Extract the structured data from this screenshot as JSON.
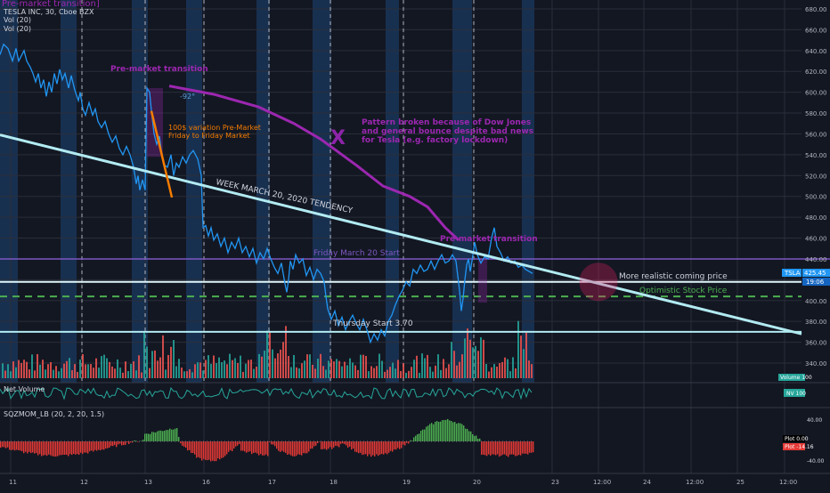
{
  "header": {
    "overlay_title": "Pre-market transition]",
    "symbol_line": "TESLA INC, 30, Cboe BZX",
    "vol_1": "Vol (20)",
    "vol_2": "Vol (20)"
  },
  "annotations": {
    "premarket_1": "Pre-market transition",
    "angle": "-92°",
    "variation_1": "100$ variation Pre-Market",
    "variation_2": "Friday to Friday Market",
    "pattern_1": "Pattern broken because of Dow Jones",
    "pattern_2": "and general bounce despite bad news",
    "pattern_3": "for Tesla (e.g. factory lockdown)",
    "trend": "WEEK MARCH 20, 2020 TENDENCY",
    "premarket_2": "Pre-market transition",
    "friday_start": "Friday March 20 Start",
    "realistic": "More realistic coming price",
    "optimistic": "Optimistic Stock Price",
    "thursday": "Thursday Start 3.70"
  },
  "price_badges": {
    "ticker": "TSLA",
    "price": "425.45",
    "timer": "19:06"
  },
  "volume_badge": "Volume 100",
  "net_volume": {
    "label": "Net Volume",
    "badge": "NV 100"
  },
  "sqz": {
    "label": "SQZMOM_LB (20, 2, 20, 1.5)",
    "plot_a": "Plot  0.00",
    "plot_b": "Plot  -14.16",
    "ticks": [
      "40.00",
      "-40.00"
    ]
  },
  "colors": {
    "price_line": "#2196f3",
    "trend_line": "#b2ebf2",
    "purple": "#9c27b0",
    "green_dash": "#4caf50",
    "vol_up": "#26a69a",
    "vol_down": "#ef5350",
    "session_band": "#1f4f8a"
  },
  "chart_data": {
    "type": "line",
    "y_axis_ticks": [
      680,
      660,
      640,
      620,
      600,
      580,
      560,
      540,
      520,
      500,
      480,
      460,
      440,
      420,
      400,
      380,
      360,
      340
    ],
    "x_axis_ticks": [
      "11",
      "12",
      "13",
      "16",
      "17",
      "18",
      "19",
      "20",
      "23",
      "12:00",
      "24",
      "12:00",
      "25",
      "12:00"
    ],
    "ylim": [
      330,
      690
    ],
    "price_series": [
      [
        0,
        636
      ],
      [
        4,
        646
      ],
      [
        9,
        642
      ],
      [
        14,
        630
      ],
      [
        18,
        642
      ],
      [
        21,
        630
      ],
      [
        27,
        640
      ],
      [
        30,
        630
      ],
      [
        34,
        624
      ],
      [
        37,
        618
      ],
      [
        40,
        610
      ],
      [
        43,
        618
      ],
      [
        46,
        604
      ],
      [
        49,
        612
      ],
      [
        52,
        596
      ],
      [
        55,
        610
      ],
      [
        58,
        600
      ],
      [
        61,
        618
      ],
      [
        64,
        608
      ],
      [
        67,
        622
      ],
      [
        70,
        612
      ],
      [
        73,
        618
      ],
      [
        77,
        604
      ],
      [
        80,
        616
      ],
      [
        84,
        602
      ],
      [
        88,
        592
      ],
      [
        90,
        600
      ],
      [
        93,
        584
      ],
      [
        96,
        578
      ],
      [
        100,
        590
      ],
      [
        104,
        578
      ],
      [
        107,
        584
      ],
      [
        110,
        572
      ],
      [
        114,
        566
      ],
      [
        118,
        572
      ],
      [
        122,
        560
      ],
      [
        126,
        552
      ],
      [
        130,
        558
      ],
      [
        134,
        546
      ],
      [
        138,
        540
      ],
      [
        142,
        548
      ],
      [
        146,
        540
      ],
      [
        150,
        528
      ],
      [
        153,
        512
      ],
      [
        155,
        520
      ],
      [
        157,
        506
      ],
      [
        160,
        516
      ],
      [
        163,
        506
      ],
      [
        165,
        604
      ],
      [
        168,
        600
      ],
      [
        170,
        582
      ],
      [
        173,
        560
      ],
      [
        176,
        550
      ],
      [
        179,
        558
      ],
      [
        182,
        538
      ],
      [
        185,
        530
      ],
      [
        188,
        528
      ],
      [
        192,
        540
      ],
      [
        195,
        520
      ],
      [
        198,
        532
      ],
      [
        201,
        528
      ],
      [
        205,
        538
      ],
      [
        209,
        532
      ],
      [
        213,
        540
      ],
      [
        217,
        544
      ],
      [
        222,
        536
      ],
      [
        226,
        520
      ],
      [
        228,
        470
      ],
      [
        231,
        472
      ],
      [
        234,
        462
      ],
      [
        237,
        470
      ],
      [
        240,
        458
      ],
      [
        244,
        464
      ],
      [
        248,
        452
      ],
      [
        252,
        460
      ],
      [
        256,
        446
      ],
      [
        260,
        456
      ],
      [
        264,
        450
      ],
      [
        268,
        460
      ],
      [
        272,
        446
      ],
      [
        276,
        452
      ],
      [
        280,
        442
      ],
      [
        284,
        450
      ],
      [
        288,
        436
      ],
      [
        292,
        446
      ],
      [
        296,
        440
      ],
      [
        300,
        450
      ],
      [
        304,
        440
      ],
      [
        308,
        432
      ],
      [
        312,
        426
      ],
      [
        316,
        436
      ],
      [
        320,
        416
      ],
      [
        322,
        408
      ],
      [
        324,
        420
      ],
      [
        326,
        438
      ],
      [
        329,
        430
      ],
      [
        332,
        444
      ],
      [
        336,
        436
      ],
      [
        340,
        440
      ],
      [
        344,
        424
      ],
      [
        348,
        432
      ],
      [
        352,
        420
      ],
      [
        356,
        430
      ],
      [
        360,
        426
      ],
      [
        364,
        418
      ],
      [
        366,
        404
      ],
      [
        368,
        392
      ],
      [
        372,
        382
      ],
      [
        376,
        390
      ],
      [
        380,
        376
      ],
      [
        384,
        384
      ],
      [
        388,
        372
      ],
      [
        392,
        380
      ],
      [
        396,
        386
      ],
      [
        400,
        378
      ],
      [
        404,
        372
      ],
      [
        408,
        382
      ],
      [
        412,
        372
      ],
      [
        416,
        360
      ],
      [
        420,
        368
      ],
      [
        424,
        362
      ],
      [
        428,
        372
      ],
      [
        432,
        366
      ],
      [
        436,
        380
      ],
      [
        440,
        386
      ],
      [
        444,
        396
      ],
      [
        448,
        404
      ],
      [
        452,
        410
      ],
      [
        456,
        418
      ],
      [
        460,
        414
      ],
      [
        464,
        430
      ],
      [
        468,
        426
      ],
      [
        472,
        434
      ],
      [
        476,
        428
      ],
      [
        480,
        430
      ],
      [
        484,
        438
      ],
      [
        488,
        430
      ],
      [
        492,
        438
      ],
      [
        496,
        444
      ],
      [
        500,
        436
      ],
      [
        504,
        438
      ],
      [
        508,
        444
      ],
      [
        512,
        438
      ],
      [
        514,
        424
      ],
      [
        516,
        410
      ],
      [
        518,
        390
      ],
      [
        520,
        402
      ],
      [
        522,
        420
      ],
      [
        524,
        434
      ],
      [
        526,
        440
      ],
      [
        528,
        428
      ],
      [
        530,
        438
      ],
      [
        533,
        456
      ],
      [
        536,
        444
      ],
      [
        540,
        436
      ],
      [
        544,
        442
      ],
      [
        548,
        440
      ],
      [
        552,
        460
      ],
      [
        555,
        470
      ],
      [
        558,
        452
      ],
      [
        562,
        446
      ],
      [
        566,
        438
      ],
      [
        570,
        442
      ],
      [
        574,
        436
      ],
      [
        578,
        438
      ],
      [
        582,
        432
      ],
      [
        586,
        434
      ],
      [
        590,
        430
      ],
      [
        594,
        428
      ],
      [
        598,
        426
      ]
    ],
    "trend_line": [
      [
        0,
        559
      ],
      [
        900,
        368
      ]
    ],
    "levels": {
      "friday_start": 440,
      "realistic_price": 418,
      "optimistic_price": 404,
      "thursday_start": 370
    },
    "premarket_boxes": [
      {
        "x0": 165,
        "x1": 183,
        "y0": 604,
        "y1": 538
      },
      {
        "x0": 537,
        "x1": 547,
        "y0": 440,
        "y1": 398
      }
    ],
    "purple_path": [
      [
        190,
        606
      ],
      [
        240,
        598
      ],
      [
        290,
        586
      ],
      [
        330,
        570
      ],
      [
        360,
        555
      ],
      [
        400,
        530
      ],
      [
        430,
        510
      ],
      [
        460,
        500
      ],
      [
        480,
        490
      ],
      [
        500,
        470
      ],
      [
        515,
        458
      ]
    ],
    "orange_path": [
      [
        170,
        582
      ],
      [
        193,
        499
      ]
    ],
    "circle_center": [
      672,
      418
    ]
  }
}
